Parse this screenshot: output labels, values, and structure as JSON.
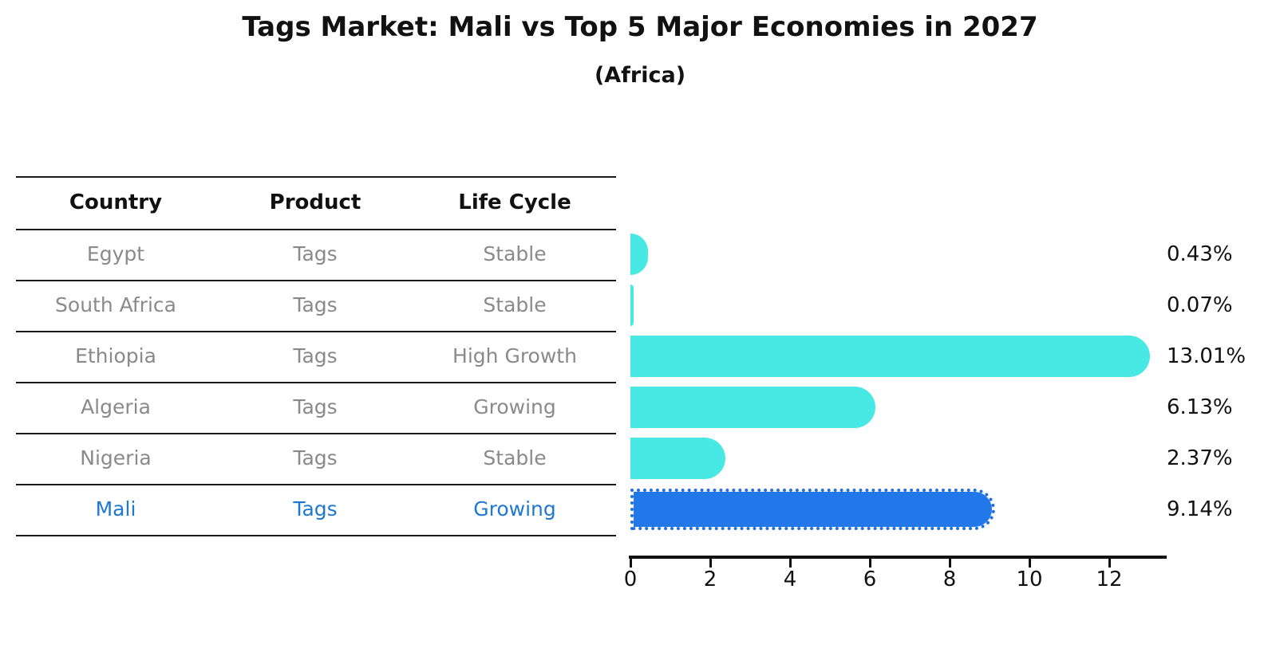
{
  "title": "Tags Market: Mali vs Top 5 Major Economies in 2027",
  "subtitle": "(Africa)",
  "table": {
    "headers": [
      "Country",
      "Product",
      "Life Cycle"
    ],
    "rows": [
      {
        "country": "Egypt",
        "product": "Tags",
        "life_cycle": "Stable",
        "share_label": "0.43%"
      },
      {
        "country": "South Africa",
        "product": "Tags",
        "life_cycle": "Stable",
        "share_label": "0.07%"
      },
      {
        "country": "Ethiopia",
        "product": "Tags",
        "life_cycle": "High Growth",
        "share_label": "13.01%"
      },
      {
        "country": "Algeria",
        "product": "Tags",
        "life_cycle": "Growing",
        "share_label": "6.13%"
      },
      {
        "country": "Nigeria",
        "product": "Tags",
        "life_cycle": "Stable",
        "share_label": "2.37%"
      },
      {
        "country": "Mali",
        "product": "Tags",
        "life_cycle": "Growing",
        "share_label": "9.14%"
      }
    ]
  },
  "chart_data": {
    "type": "bar",
    "orientation": "horizontal",
    "title": "Tags Market: Mali vs Top 5 Major Economies in 2027",
    "subtitle": "(Africa)",
    "categories": [
      "Egypt",
      "South Africa",
      "Ethiopia",
      "Algeria",
      "Nigeria",
      "Mali"
    ],
    "values": [
      0.43,
      0.07,
      13.01,
      6.13,
      2.37,
      9.14
    ],
    "value_labels": [
      "0.43%",
      "0.07%",
      "13.01%",
      "6.13%",
      "2.37%",
      "9.14%"
    ],
    "xlabel": "",
    "ylabel": "",
    "x_ticks": [
      0,
      2,
      4,
      6,
      8,
      10,
      12
    ],
    "xlim": [
      0,
      13.4
    ],
    "grid": false,
    "legend": "none",
    "highlight_index": 5,
    "highlight_style": "dotted-edge"
  },
  "colors": {
    "bar_default": "#48E9E5",
    "bar_highlight": "#2278E8",
    "bar_highlight_border": "#1F6FDD",
    "row_text": "#8a8a8a",
    "highlight_text": "#1E78D2",
    "header_text": "#111111",
    "axis": "#111111"
  }
}
